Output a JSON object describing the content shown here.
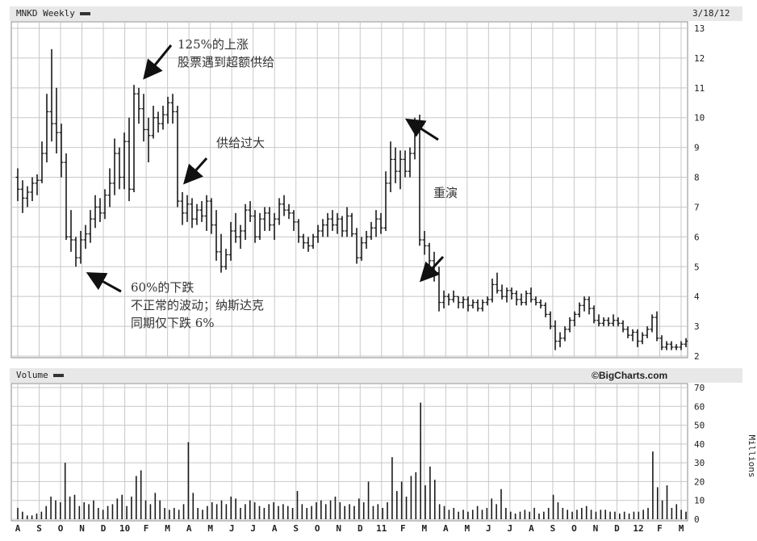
{
  "header": {
    "ticker_label": "MNKD Weekly",
    "date": "3/18/12"
  },
  "volume_header": {
    "label": "Volume",
    "source": "©BigCharts.com"
  },
  "annotations": {
    "a1": [
      "125%的上涨",
      "股票遇到超额供给"
    ],
    "a2": [
      "供给过大"
    ],
    "a3": [
      "60%的下跌",
      "不正常的波动；纳斯达克",
      "同期仅下跌 6%"
    ],
    "a4": [
      "重演"
    ]
  },
  "colors": {
    "bars": "#1a1a1a",
    "grid": "#c8c8c8",
    "arrow": "#111111"
  },
  "chart_data": [
    {
      "type": "ohlc",
      "title": "MNKD Weekly",
      "ylim": [
        2,
        13
      ],
      "yticks": [
        2,
        3,
        4,
        5,
        6,
        7,
        8,
        9,
        10,
        11,
        12,
        13
      ],
      "x_tick_labels": [
        "A",
        "S",
        "O",
        "N",
        "D",
        "10",
        "F",
        "M",
        "A",
        "M",
        "J",
        "J",
        "A",
        "S",
        "O",
        "N",
        "D",
        "11",
        "F",
        "M",
        "A",
        "M",
        "J",
        "J",
        "A",
        "S",
        "O",
        "N",
        "D",
        "12",
        "F",
        "M"
      ],
      "grid": true,
      "bars": [
        {
          "o": 8.0,
          "h": 8.3,
          "l": 7.2,
          "c": 7.6
        },
        {
          "o": 7.6,
          "h": 7.9,
          "l": 6.8,
          "c": 7.3
        },
        {
          "o": 7.3,
          "h": 7.7,
          "l": 7.0,
          "c": 7.5
        },
        {
          "o": 7.5,
          "h": 8.0,
          "l": 7.2,
          "c": 7.8
        },
        {
          "o": 7.8,
          "h": 8.1,
          "l": 7.4,
          "c": 7.9
        },
        {
          "o": 7.9,
          "h": 9.2,
          "l": 7.8,
          "c": 8.8
        },
        {
          "o": 8.8,
          "h": 10.8,
          "l": 8.5,
          "c": 10.2
        },
        {
          "o": 10.2,
          "h": 12.3,
          "l": 9.2,
          "c": 9.8
        },
        {
          "o": 9.8,
          "h": 11.0,
          "l": 8.8,
          "c": 9.5
        },
        {
          "o": 9.5,
          "h": 9.8,
          "l": 8.0,
          "c": 8.5
        },
        {
          "o": 8.5,
          "h": 8.8,
          "l": 5.9,
          "c": 6.0
        },
        {
          "o": 6.0,
          "h": 6.9,
          "l": 5.5,
          "c": 5.9
        },
        {
          "o": 5.9,
          "h": 6.0,
          "l": 5.0,
          "c": 5.3
        },
        {
          "o": 5.3,
          "h": 6.2,
          "l": 5.1,
          "c": 5.9
        },
        {
          "o": 5.9,
          "h": 6.4,
          "l": 5.6,
          "c": 6.1
        },
        {
          "o": 6.1,
          "h": 6.9,
          "l": 5.8,
          "c": 6.6
        },
        {
          "o": 6.6,
          "h": 7.4,
          "l": 6.3,
          "c": 7.0
        },
        {
          "o": 7.0,
          "h": 7.3,
          "l": 6.5,
          "c": 6.8
        },
        {
          "o": 6.8,
          "h": 7.6,
          "l": 6.6,
          "c": 7.4
        },
        {
          "o": 7.4,
          "h": 8.3,
          "l": 7.0,
          "c": 7.8
        },
        {
          "o": 7.8,
          "h": 9.3,
          "l": 7.4,
          "c": 8.8
        },
        {
          "o": 8.8,
          "h": 9.0,
          "l": 7.6,
          "c": 8.0
        },
        {
          "o": 8.0,
          "h": 9.5,
          "l": 7.6,
          "c": 9.2
        },
        {
          "o": 9.2,
          "h": 10.0,
          "l": 7.2,
          "c": 7.6
        },
        {
          "o": 7.6,
          "h": 11.1,
          "l": 7.5,
          "c": 10.8
        },
        {
          "o": 10.8,
          "h": 11.0,
          "l": 9.8,
          "c": 10.3
        },
        {
          "o": 10.3,
          "h": 10.8,
          "l": 9.2,
          "c": 9.6
        },
        {
          "o": 9.6,
          "h": 10.0,
          "l": 8.5,
          "c": 9.4
        },
        {
          "o": 9.4,
          "h": 10.4,
          "l": 9.3,
          "c": 10.0
        },
        {
          "o": 10.0,
          "h": 10.2,
          "l": 9.5,
          "c": 9.8
        },
        {
          "o": 9.8,
          "h": 10.4,
          "l": 9.6,
          "c": 10.1
        },
        {
          "o": 10.1,
          "h": 10.7,
          "l": 9.8,
          "c": 10.5
        },
        {
          "o": 10.5,
          "h": 10.8,
          "l": 9.8,
          "c": 10.2
        },
        {
          "o": 10.2,
          "h": 10.4,
          "l": 7.0,
          "c": 7.2
        },
        {
          "o": 7.2,
          "h": 7.5,
          "l": 6.4,
          "c": 6.8
        },
        {
          "o": 6.8,
          "h": 7.4,
          "l": 6.5,
          "c": 7.1
        },
        {
          "o": 7.1,
          "h": 7.3,
          "l": 6.3,
          "c": 6.6
        },
        {
          "o": 6.6,
          "h": 7.1,
          "l": 6.4,
          "c": 6.9
        },
        {
          "o": 6.9,
          "h": 7.2,
          "l": 6.5,
          "c": 6.7
        },
        {
          "o": 6.7,
          "h": 7.4,
          "l": 6.2,
          "c": 7.2
        },
        {
          "o": 7.2,
          "h": 7.3,
          "l": 6.1,
          "c": 6.4
        },
        {
          "o": 6.4,
          "h": 6.9,
          "l": 5.2,
          "c": 5.5
        },
        {
          "o": 5.5,
          "h": 6.1,
          "l": 4.8,
          "c": 5.0
        },
        {
          "o": 5.0,
          "h": 5.6,
          "l": 4.9,
          "c": 5.4
        },
        {
          "o": 5.4,
          "h": 6.5,
          "l": 5.2,
          "c": 6.2
        },
        {
          "o": 6.2,
          "h": 6.8,
          "l": 5.8,
          "c": 6.0
        },
        {
          "o": 6.0,
          "h": 6.4,
          "l": 5.6,
          "c": 6.2
        },
        {
          "o": 6.2,
          "h": 7.1,
          "l": 5.9,
          "c": 6.9
        },
        {
          "o": 6.9,
          "h": 7.2,
          "l": 6.5,
          "c": 6.7
        },
        {
          "o": 6.7,
          "h": 6.9,
          "l": 5.8,
          "c": 6.0
        },
        {
          "o": 6.0,
          "h": 6.8,
          "l": 5.9,
          "c": 6.6
        },
        {
          "o": 6.6,
          "h": 7.0,
          "l": 6.2,
          "c": 6.8
        },
        {
          "o": 6.8,
          "h": 7.0,
          "l": 6.2,
          "c": 6.4
        },
        {
          "o": 6.4,
          "h": 6.8,
          "l": 5.9,
          "c": 6.6
        },
        {
          "o": 6.6,
          "h": 7.3,
          "l": 6.4,
          "c": 7.1
        },
        {
          "o": 7.1,
          "h": 7.4,
          "l": 6.7,
          "c": 6.9
        },
        {
          "o": 6.9,
          "h": 7.1,
          "l": 6.6,
          "c": 6.8
        },
        {
          "o": 6.8,
          "h": 6.9,
          "l": 6.2,
          "c": 6.5
        },
        {
          "o": 6.5,
          "h": 6.6,
          "l": 5.8,
          "c": 6.0
        },
        {
          "o": 6.0,
          "h": 6.1,
          "l": 5.6,
          "c": 5.8
        },
        {
          "o": 5.8,
          "h": 6.0,
          "l": 5.5,
          "c": 5.7
        },
        {
          "o": 5.7,
          "h": 6.1,
          "l": 5.6,
          "c": 6.0
        },
        {
          "o": 6.0,
          "h": 6.4,
          "l": 5.8,
          "c": 6.2
        },
        {
          "o": 6.2,
          "h": 6.6,
          "l": 6.0,
          "c": 6.4
        },
        {
          "o": 6.4,
          "h": 6.8,
          "l": 6.0,
          "c": 6.6
        },
        {
          "o": 6.6,
          "h": 6.9,
          "l": 6.2,
          "c": 6.4
        },
        {
          "o": 6.4,
          "h": 6.8,
          "l": 6.1,
          "c": 6.6
        },
        {
          "o": 6.6,
          "h": 6.7,
          "l": 6.0,
          "c": 6.2
        },
        {
          "o": 6.2,
          "h": 7.0,
          "l": 6.0,
          "c": 6.7
        },
        {
          "o": 6.7,
          "h": 6.8,
          "l": 6.0,
          "c": 6.1
        },
        {
          "o": 6.1,
          "h": 6.3,
          "l": 5.1,
          "c": 5.3
        },
        {
          "o": 5.3,
          "h": 6.0,
          "l": 5.2,
          "c": 5.8
        },
        {
          "o": 5.8,
          "h": 6.2,
          "l": 5.6,
          "c": 6.0
        },
        {
          "o": 6.0,
          "h": 6.5,
          "l": 5.9,
          "c": 6.3
        },
        {
          "o": 6.3,
          "h": 6.9,
          "l": 6.0,
          "c": 6.6
        },
        {
          "o": 6.6,
          "h": 6.8,
          "l": 6.1,
          "c": 6.3
        },
        {
          "o": 6.3,
          "h": 8.2,
          "l": 6.2,
          "c": 7.8
        },
        {
          "o": 7.8,
          "h": 9.2,
          "l": 7.5,
          "c": 8.6
        },
        {
          "o": 8.6,
          "h": 9.0,
          "l": 7.8,
          "c": 8.2
        },
        {
          "o": 8.2,
          "h": 8.9,
          "l": 7.6,
          "c": 8.6
        },
        {
          "o": 8.6,
          "h": 8.9,
          "l": 8.0,
          "c": 8.2
        },
        {
          "o": 8.2,
          "h": 9.0,
          "l": 8.0,
          "c": 8.8
        },
        {
          "o": 8.8,
          "h": 10.0,
          "l": 8.6,
          "c": 9.8
        },
        {
          "o": 9.8,
          "h": 10.1,
          "l": 5.7,
          "c": 5.9
        },
        {
          "o": 5.9,
          "h": 6.2,
          "l": 5.4,
          "c": 5.7
        },
        {
          "o": 5.7,
          "h": 5.8,
          "l": 5.0,
          "c": 5.2
        },
        {
          "o": 5.2,
          "h": 5.5,
          "l": 4.5,
          "c": 4.8
        },
        {
          "o": 4.8,
          "h": 5.0,
          "l": 3.5,
          "c": 3.8
        },
        {
          "o": 3.8,
          "h": 4.2,
          "l": 3.6,
          "c": 4.0
        },
        {
          "o": 4.0,
          "h": 4.1,
          "l": 3.7,
          "c": 3.9
        },
        {
          "o": 3.9,
          "h": 4.2,
          "l": 3.8,
          "c": 4.0
        },
        {
          "o": 4.0,
          "h": 4.0,
          "l": 3.6,
          "c": 3.8
        },
        {
          "o": 3.8,
          "h": 4.0,
          "l": 3.6,
          "c": 3.9
        },
        {
          "o": 3.9,
          "h": 4.0,
          "l": 3.5,
          "c": 3.7
        },
        {
          "o": 3.7,
          "h": 3.9,
          "l": 3.6,
          "c": 3.8
        },
        {
          "o": 3.8,
          "h": 3.9,
          "l": 3.5,
          "c": 3.6
        },
        {
          "o": 3.6,
          "h": 3.9,
          "l": 3.5,
          "c": 3.8
        },
        {
          "o": 3.8,
          "h": 4.0,
          "l": 3.7,
          "c": 3.9
        },
        {
          "o": 3.9,
          "h": 4.6,
          "l": 3.8,
          "c": 4.4
        },
        {
          "o": 4.4,
          "h": 4.8,
          "l": 4.1,
          "c": 4.2
        },
        {
          "o": 4.2,
          "h": 4.4,
          "l": 3.9,
          "c": 4.0
        },
        {
          "o": 4.0,
          "h": 4.3,
          "l": 3.8,
          "c": 4.2
        },
        {
          "o": 4.2,
          "h": 4.3,
          "l": 3.9,
          "c": 4.1
        },
        {
          "o": 4.1,
          "h": 4.2,
          "l": 3.7,
          "c": 3.9
        },
        {
          "o": 3.9,
          "h": 4.1,
          "l": 3.7,
          "c": 3.8
        },
        {
          "o": 3.8,
          "h": 4.2,
          "l": 3.7,
          "c": 4.1
        },
        {
          "o": 4.1,
          "h": 4.3,
          "l": 3.8,
          "c": 3.9
        },
        {
          "o": 3.9,
          "h": 4.0,
          "l": 3.7,
          "c": 3.8
        },
        {
          "o": 3.8,
          "h": 3.9,
          "l": 3.6,
          "c": 3.7
        },
        {
          "o": 3.7,
          "h": 3.8,
          "l": 3.3,
          "c": 3.4
        },
        {
          "o": 3.4,
          "h": 3.5,
          "l": 2.9,
          "c": 3.0
        },
        {
          "o": 3.0,
          "h": 3.2,
          "l": 2.2,
          "c": 2.5
        },
        {
          "o": 2.5,
          "h": 2.8,
          "l": 2.3,
          "c": 2.6
        },
        {
          "o": 2.6,
          "h": 3.0,
          "l": 2.5,
          "c": 2.9
        },
        {
          "o": 2.9,
          "h": 3.3,
          "l": 2.8,
          "c": 3.2
        },
        {
          "o": 3.2,
          "h": 3.5,
          "l": 3.0,
          "c": 3.4
        },
        {
          "o": 3.4,
          "h": 3.8,
          "l": 3.3,
          "c": 3.7
        },
        {
          "o": 3.7,
          "h": 4.0,
          "l": 3.5,
          "c": 3.9
        },
        {
          "o": 3.9,
          "h": 4.0,
          "l": 3.4,
          "c": 3.6
        },
        {
          "o": 3.6,
          "h": 3.7,
          "l": 3.1,
          "c": 3.2
        },
        {
          "o": 3.2,
          "h": 3.4,
          "l": 3.0,
          "c": 3.1
        },
        {
          "o": 3.1,
          "h": 3.3,
          "l": 3.0,
          "c": 3.2
        },
        {
          "o": 3.2,
          "h": 3.3,
          "l": 3.0,
          "c": 3.1
        },
        {
          "o": 3.1,
          "h": 3.4,
          "l": 3.0,
          "c": 3.2
        },
        {
          "o": 3.2,
          "h": 3.3,
          "l": 3.0,
          "c": 3.1
        },
        {
          "o": 3.1,
          "h": 3.2,
          "l": 2.8,
          "c": 2.9
        },
        {
          "o": 2.9,
          "h": 3.0,
          "l": 2.6,
          "c": 2.7
        },
        {
          "o": 2.7,
          "h": 2.9,
          "l": 2.5,
          "c": 2.8
        },
        {
          "o": 2.8,
          "h": 2.9,
          "l": 2.3,
          "c": 2.5
        },
        {
          "o": 2.5,
          "h": 2.8,
          "l": 2.4,
          "c": 2.7
        },
        {
          "o": 2.7,
          "h": 3.0,
          "l": 2.6,
          "c": 2.9
        },
        {
          "o": 2.9,
          "h": 3.4,
          "l": 2.8,
          "c": 3.3
        },
        {
          "o": 3.3,
          "h": 3.5,
          "l": 2.5,
          "c": 2.6
        },
        {
          "o": 2.6,
          "h": 2.7,
          "l": 2.2,
          "c": 2.3
        },
        {
          "o": 2.3,
          "h": 2.5,
          "l": 2.2,
          "c": 2.4
        },
        {
          "o": 2.4,
          "h": 2.5,
          "l": 2.2,
          "c": 2.3
        },
        {
          "o": 2.3,
          "h": 2.4,
          "l": 2.2,
          "c": 2.3
        },
        {
          "o": 2.3,
          "h": 2.5,
          "l": 2.2,
          "c": 2.4
        },
        {
          "o": 2.4,
          "h": 2.6,
          "l": 2.3,
          "c": 2.5
        }
      ]
    },
    {
      "type": "bar",
      "title": "Volume",
      "ylabel": "Millions",
      "ylim": [
        0,
        70
      ],
      "yticks": [
        0,
        10,
        20,
        30,
        40,
        50,
        60,
        70
      ],
      "grid": true,
      "values": [
        6,
        4,
        2,
        2,
        3,
        4,
        7,
        12,
        10,
        9,
        30,
        12,
        13,
        7,
        9,
        8,
        10,
        6,
        5,
        7,
        8,
        11,
        13,
        7,
        12,
        23,
        26,
        10,
        8,
        14,
        10,
        6,
        5,
        6,
        5,
        8,
        41,
        14,
        6,
        5,
        7,
        9,
        8,
        10,
        8,
        12,
        11,
        6,
        8,
        10,
        9,
        7,
        6,
        8,
        9,
        7,
        8,
        7,
        6,
        15,
        8,
        6,
        7,
        9,
        10,
        8,
        10,
        12,
        9,
        7,
        8,
        7,
        11,
        9,
        20,
        7,
        8,
        6,
        9,
        33,
        15,
        20,
        12,
        23,
        25,
        62,
        18,
        28,
        21,
        8,
        7,
        5,
        6,
        4,
        5,
        4,
        5,
        7,
        5,
        6,
        11,
        8,
        16,
        6,
        4,
        3,
        4,
        5,
        4,
        6,
        3,
        4,
        6,
        13,
        9,
        6,
        5,
        4,
        5,
        6,
        7,
        5,
        4,
        5,
        5,
        4,
        4,
        3,
        4,
        3,
        4,
        4,
        5,
        6,
        36,
        17,
        10,
        18,
        6,
        8,
        5,
        4
      ]
    }
  ]
}
